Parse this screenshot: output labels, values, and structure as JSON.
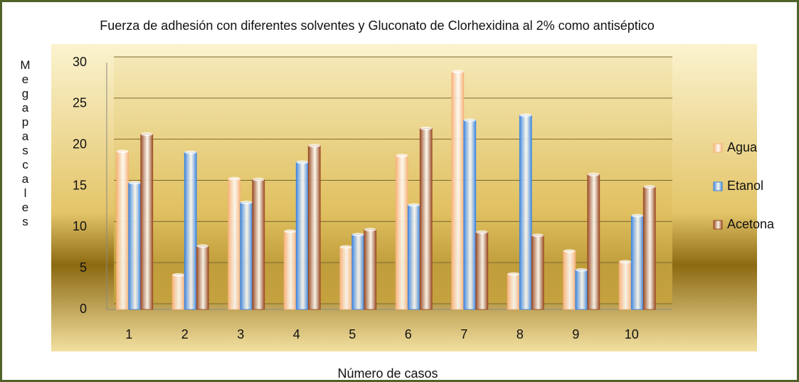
{
  "chart_data": {
    "type": "bar",
    "title": "Fuerza de adhesión con diferentes solventes y Gluconato de Clorhexidina al 2% como antiséptico",
    "x_label": "Número de casos",
    "y_label": "Megapascales",
    "categories": [
      "1",
      "2",
      "3",
      "4",
      "5",
      "6",
      "7",
      "8",
      "9",
      "10"
    ],
    "series": [
      {
        "name": "Agua",
        "color": "#f7b27a",
        "values": [
          19.2,
          4.2,
          15.9,
          9.5,
          7.6,
          18.7,
          28.9,
          4.3,
          7.1,
          5.8
        ]
      },
      {
        "name": "Etanol",
        "color": "#3f86de",
        "values": [
          15.4,
          19.1,
          13,
          17.9,
          9.1,
          12.7,
          23,
          23.6,
          4.8,
          11.4
        ]
      },
      {
        "name": "Acetona",
        "color": "#9a4a24",
        "values": [
          21.3,
          7.7,
          15.8,
          19.9,
          9.7,
          22,
          9.4,
          9,
          16.4,
          14.9
        ]
      }
    ],
    "ylim": [
      0,
      30
    ],
    "yticks": [
      0,
      5,
      10,
      15,
      20,
      25,
      30
    ],
    "grid": true,
    "legend": "right"
  }
}
